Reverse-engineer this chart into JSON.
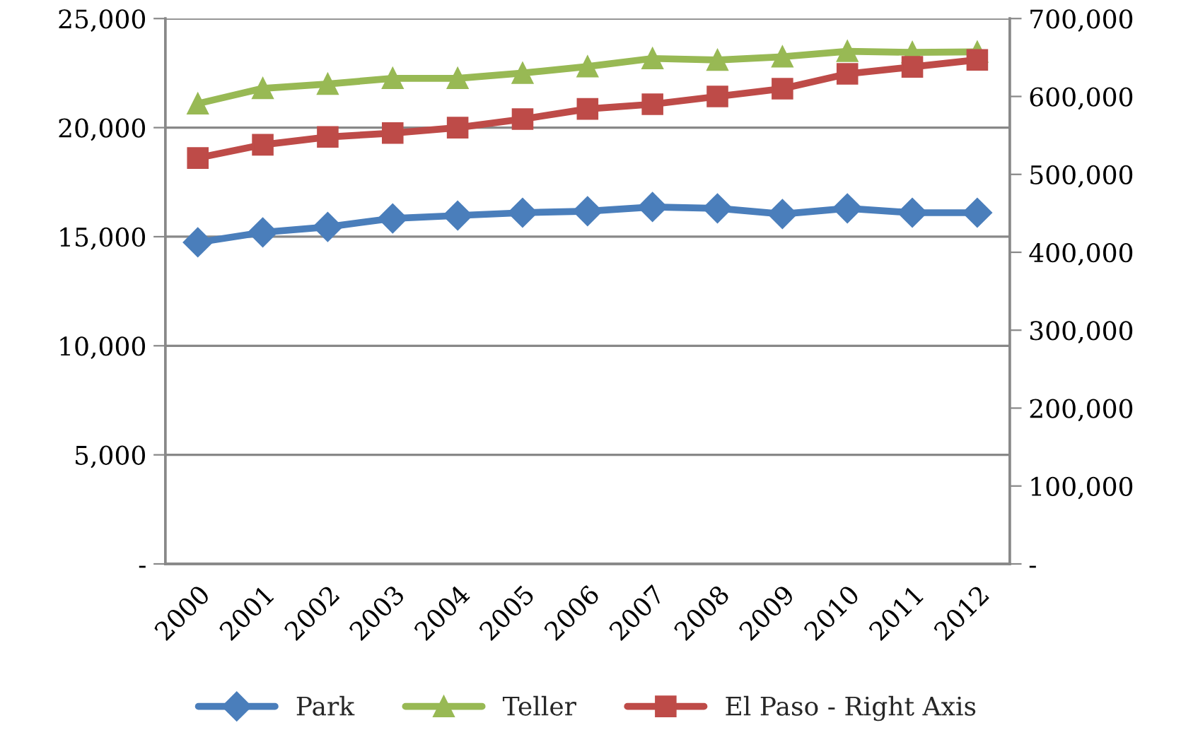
{
  "chart_data": {
    "type": "line",
    "categories": [
      "2000",
      "2001",
      "2002",
      "2003",
      "2004",
      "2005",
      "2006",
      "2007",
      "2008",
      "2009",
      "2010",
      "2011",
      "2012"
    ],
    "series": [
      {
        "name": "Park",
        "color": "#4a7ebb",
        "marker": "diamond",
        "values": [
          14740,
          15200,
          15450,
          15840,
          15970,
          16100,
          16170,
          16360,
          16300,
          16040,
          16300,
          16100,
          16100
        ]
      },
      {
        "name": "Teller",
        "color": "#98b954",
        "marker": "triangle",
        "values": [
          21100,
          21800,
          22000,
          22260,
          22260,
          22500,
          22800,
          23170,
          23100,
          23250,
          23500,
          23450,
          23470
        ]
      },
      {
        "name": "El Paso - Right Axis",
        "color": "#be4b48",
        "marker": "square",
        "axis": "y2",
        "values": [
          521000,
          538000,
          548000,
          553000,
          560000,
          571000,
          584000,
          590000,
          600000,
          610000,
          629000,
          638000,
          647000
        ]
      }
    ],
    "ylim": [
      0,
      25000
    ],
    "yticks": [
      {
        "value": 0,
        "label": "-"
      },
      {
        "value": 5000,
        "label": "5,000"
      },
      {
        "value": 10000,
        "label": "10,000"
      },
      {
        "value": 15000,
        "label": "15,000"
      },
      {
        "value": 20000,
        "label": "20,000"
      },
      {
        "value": 25000,
        "label": "25,000"
      }
    ],
    "y2lim": [
      0,
      700000
    ],
    "y2ticks": [
      {
        "value": 0,
        "label": "-"
      },
      {
        "value": 100000,
        "label": "100,000"
      },
      {
        "value": 200000,
        "label": "200,000"
      },
      {
        "value": 300000,
        "label": "300,000"
      },
      {
        "value": 400000,
        "label": "400,000"
      },
      {
        "value": 500000,
        "label": "500,000"
      },
      {
        "value": 600000,
        "label": "600,000"
      },
      {
        "value": 700000,
        "label": "700,000"
      }
    ],
    "grid": "y",
    "legend": "bottom",
    "line_style": "solid"
  }
}
